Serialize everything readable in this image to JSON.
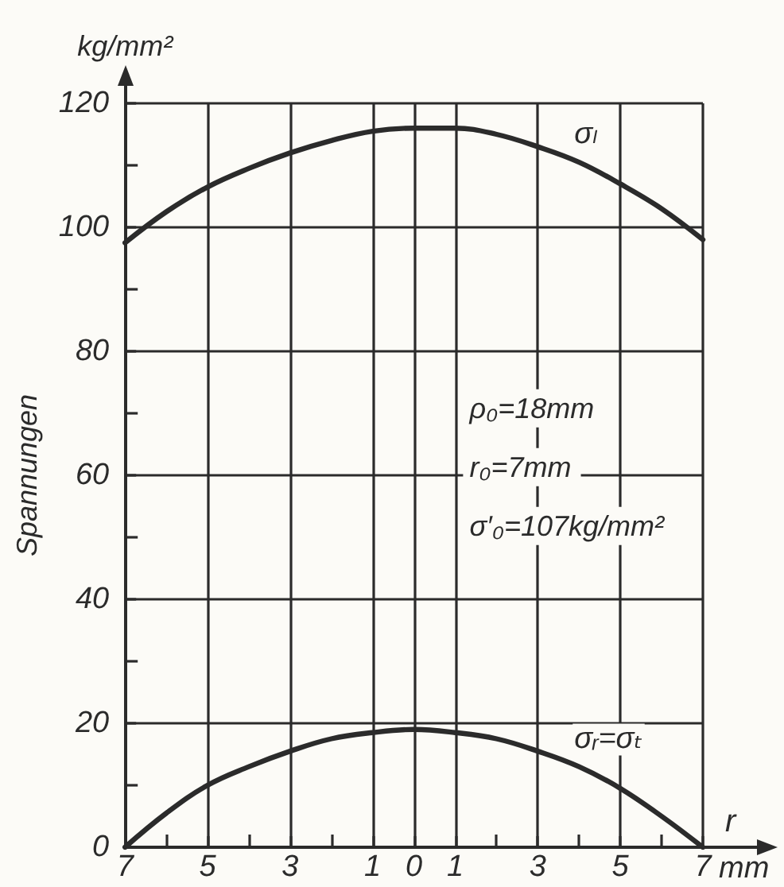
{
  "chart_data": {
    "type": "line",
    "ylabel": "Spannungen",
    "xlabel": "r",
    "x": [
      -7,
      -6,
      -5,
      -4,
      -3,
      -2,
      -1,
      0,
      1,
      2,
      3,
      4,
      5,
      6,
      7
    ],
    "series": [
      {
        "name": "σₗ",
        "color": "#2b2b2b",
        "values": [
          97.5,
          102.5,
          106.5,
          109.5,
          112,
          114,
          115.5,
          116,
          116,
          115,
          113,
          110.5,
          107,
          103,
          98
        ]
      },
      {
        "name": "σᵣ=σₜ",
        "color": "#2b2b2b",
        "values": [
          0,
          5.5,
          10,
          13,
          15.5,
          17.5,
          18.5,
          19,
          18.5,
          17.5,
          15.5,
          13,
          9.5,
          5,
          0
        ]
      }
    ],
    "xlim": [
      -7,
      7
    ],
    "xticks": [
      {
        "value": -7,
        "label": "7"
      },
      {
        "value": -6,
        "label": null
      },
      {
        "value": -5,
        "label": "5"
      },
      {
        "value": -4,
        "label": null
      },
      {
        "value": -3,
        "label": "3"
      },
      {
        "value": -2,
        "label": null
      },
      {
        "value": -1,
        "label": "1"
      },
      0,
      1,
      {
        "value": 2,
        "label": null
      },
      3,
      {
        "value": 4,
        "label": null
      },
      5,
      {
        "value": 6,
        "label": null
      },
      7
    ],
    "ylim": [
      0,
      120
    ],
    "yticks": [
      0,
      {
        "value": 10,
        "label": null
      },
      20,
      {
        "value": 30,
        "label": null
      },
      40,
      {
        "value": 50,
        "label": null
      },
      60,
      {
        "value": 70,
        "label": null
      },
      80,
      {
        "value": 90,
        "label": null
      },
      100,
      {
        "value": 110,
        "label": null
      },
      120
    ],
    "grid": true,
    "marker": "none",
    "annotations": [
      "kg/mm²",
      "mm",
      "ρ₀=18mm",
      "r₀=7mm",
      "σ′₀=107kg/mm²"
    ]
  }
}
